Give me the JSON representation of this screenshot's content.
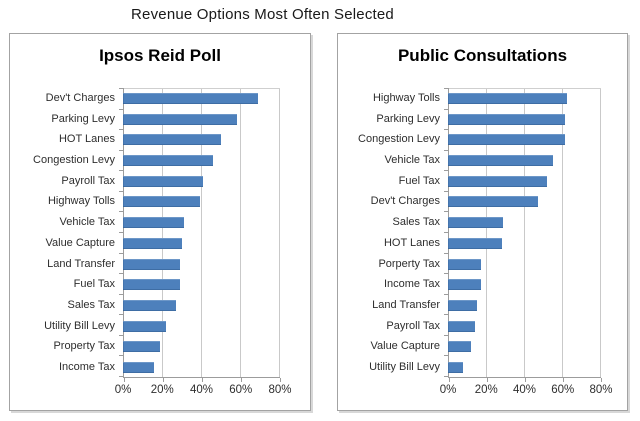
{
  "page_title": "Revenue Options Most Often Selected",
  "colors": {
    "bar": "#4D80BC",
    "gridline": "#C9C9C9",
    "axis_line": "#9C9C9C",
    "panel_border": "#A3A3A3",
    "label_text": "#2E2E2E"
  },
  "chart_data": [
    {
      "type": "bar",
      "orientation": "horizontal",
      "title": "Ipsos Reid Poll",
      "categories": [
        "Dev't Charges",
        "Parking Levy",
        "HOT Lanes",
        "Congestion Levy",
        "Payroll Tax",
        "Highway Tolls",
        "Vehicle Tax",
        "Value Capture",
        "Land Transfer",
        "Fuel Tax",
        "Sales Tax",
        "Utility Bill Levy",
        "Property Tax",
        "Income Tax"
      ],
      "values": [
        69,
        58,
        50,
        46,
        41,
        39,
        31,
        30,
        29,
        29,
        27,
        22,
        19,
        16
      ],
      "unit": "%",
      "xlabel": "",
      "ylabel": "",
      "xlim": [
        0,
        80
      ],
      "x_tick_values": [
        0,
        20,
        40,
        60,
        80
      ],
      "x_tick_labels": [
        "0%",
        "20%",
        "40%",
        "60%",
        "80%"
      ],
      "grid": true,
      "legend": false
    },
    {
      "type": "bar",
      "orientation": "horizontal",
      "title": "Public Consultations",
      "categories": [
        "Highway Tolls",
        "Parking Levy",
        "Congestion Levy",
        "Vehicle Tax",
        "Fuel Tax",
        "Dev't Charges",
        "Sales Tax",
        "HOT Lanes",
        "Porperty Tax",
        "Income Tax",
        "Land Transfer",
        "Payroll Tax",
        "Value Capture",
        "Utility Bill Levy"
      ],
      "values": [
        62,
        61,
        61,
        55,
        52,
        47,
        29,
        28,
        17,
        17,
        15,
        14,
        12,
        8
      ],
      "unit": "%",
      "xlabel": "",
      "ylabel": "",
      "xlim": [
        0,
        80
      ],
      "x_tick_values": [
        0,
        20,
        40,
        60,
        80
      ],
      "x_tick_labels": [
        "0%",
        "20%",
        "40%",
        "60%",
        "80%"
      ],
      "grid": true,
      "legend": false
    }
  ]
}
